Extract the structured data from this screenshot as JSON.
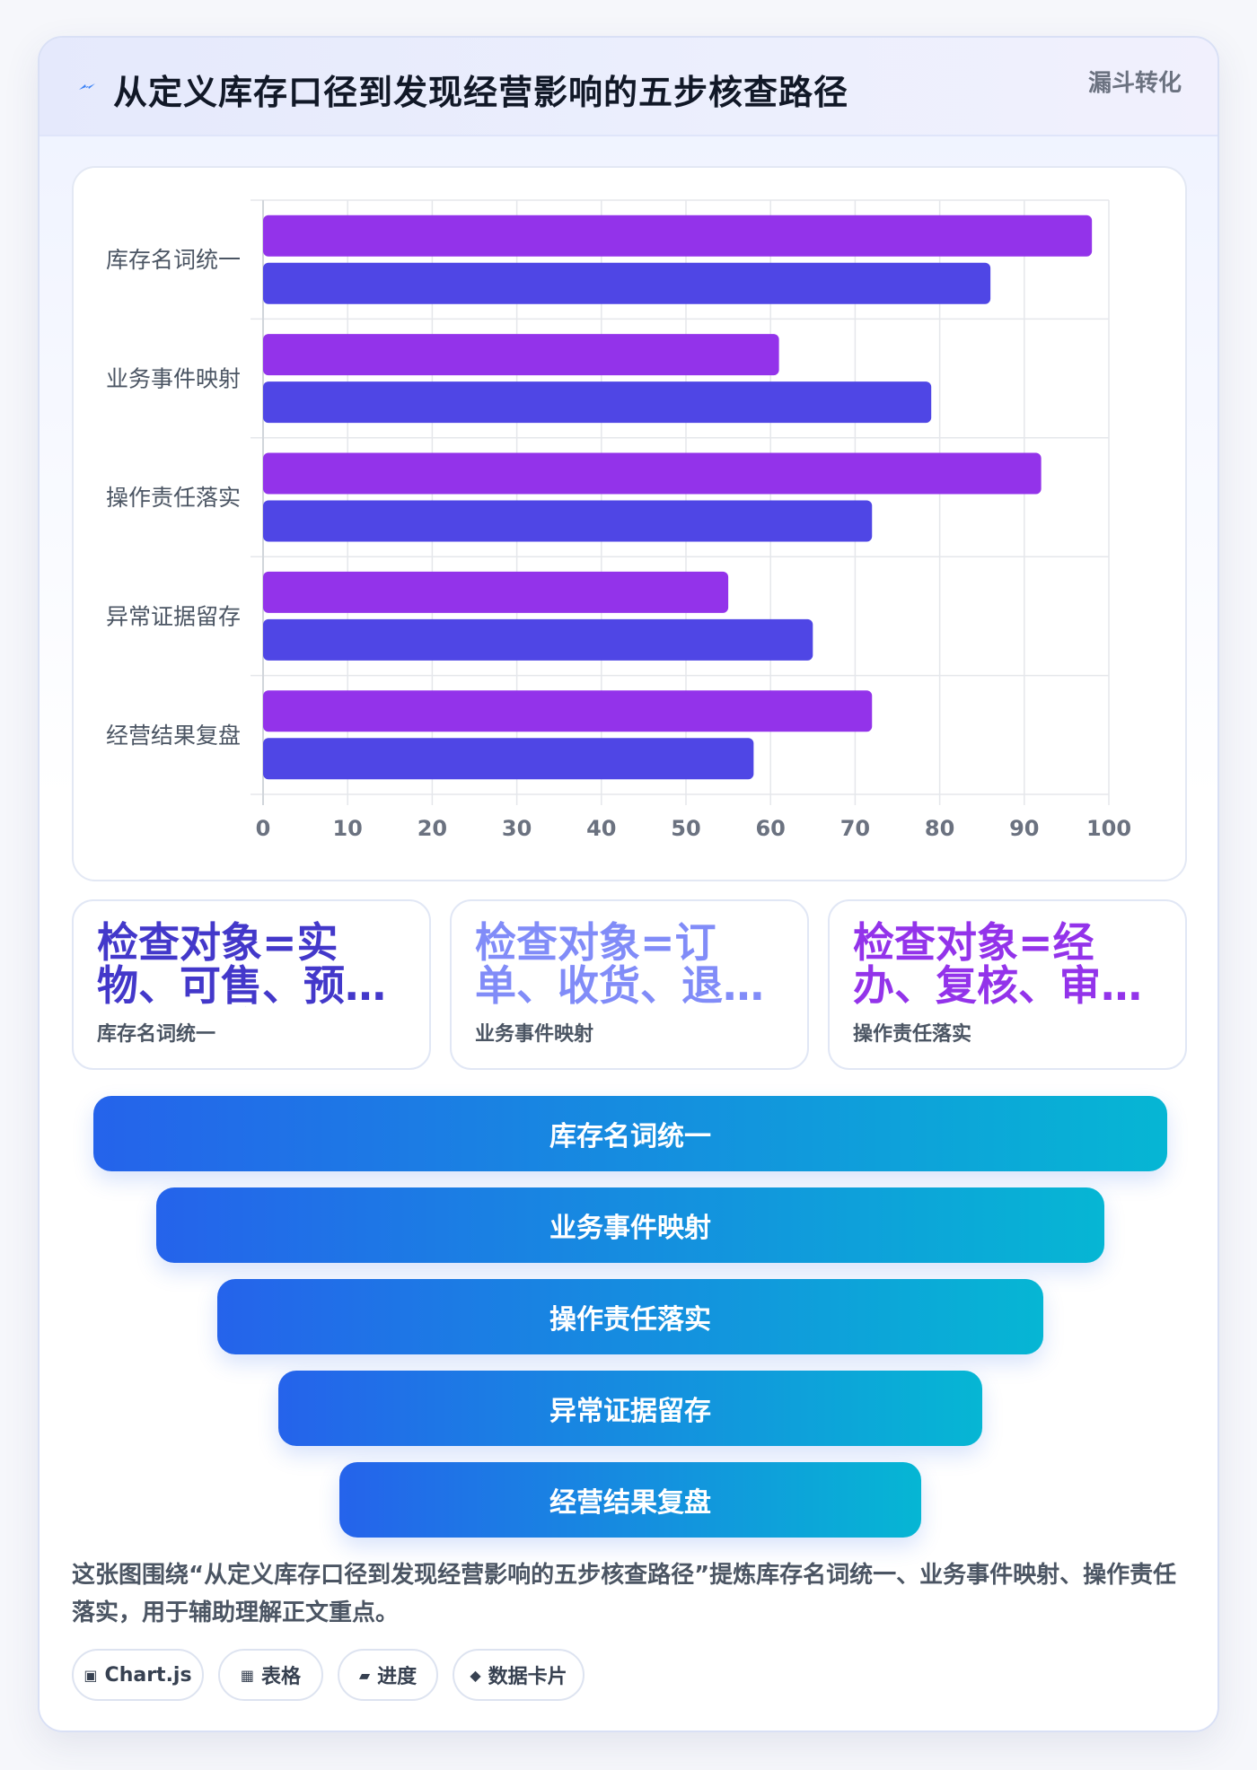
{
  "header": {
    "title": "从定义库存口径到发现经营影响的五步核查路径",
    "tag": "漏斗转化",
    "icon": "lightning-icon"
  },
  "chart_data": {
    "type": "bar",
    "orientation": "horizontal",
    "categories": [
      "库存名词统一",
      "业务事件映射",
      "操作责任落实",
      "异常证据留存",
      "经营结果复盘"
    ],
    "series": [
      {
        "values": [
          98,
          61,
          92,
          55,
          72
        ],
        "color": "#9333ea"
      },
      {
        "values": [
          86,
          79,
          72,
          65,
          58
        ],
        "color": "#4f46e5"
      }
    ],
    "xlim": [
      0,
      100
    ],
    "xticks": [
      0,
      10,
      20,
      30,
      40,
      50,
      60,
      70,
      80,
      90,
      100
    ],
    "grid": true,
    "legend": "none"
  },
  "kpis": [
    {
      "value": "检查对象=实物、可售、预占、在途与冻结库存",
      "label": "库存名词统一",
      "color": "#4338ca"
    },
    {
      "value": "检查对象=订单、收货、退货与调拨单据",
      "label": "业务事件映射",
      "color": "#818cf8"
    },
    {
      "value": "检查对象=经办、复核、审批人员",
      "label": "操作责任落实",
      "color": "#9333ea"
    }
  ],
  "funnel": [
    "库存名词统一",
    "业务事件映射",
    "操作责任落实",
    "异常证据留存",
    "经营结果复盘"
  ],
  "description": "这张图围绕“从定义库存口径到发现经营影响的五步核查路径”提炼库存名词统一、业务事件映射、操作责任落实，用于辅助理解正文重点。",
  "chips": [
    {
      "icon": "▣",
      "label": "Chart.js"
    },
    {
      "icon": "▦",
      "label": "表格"
    },
    {
      "icon": "▰",
      "label": "进度"
    },
    {
      "icon": "◆",
      "label": "数据卡片"
    }
  ]
}
